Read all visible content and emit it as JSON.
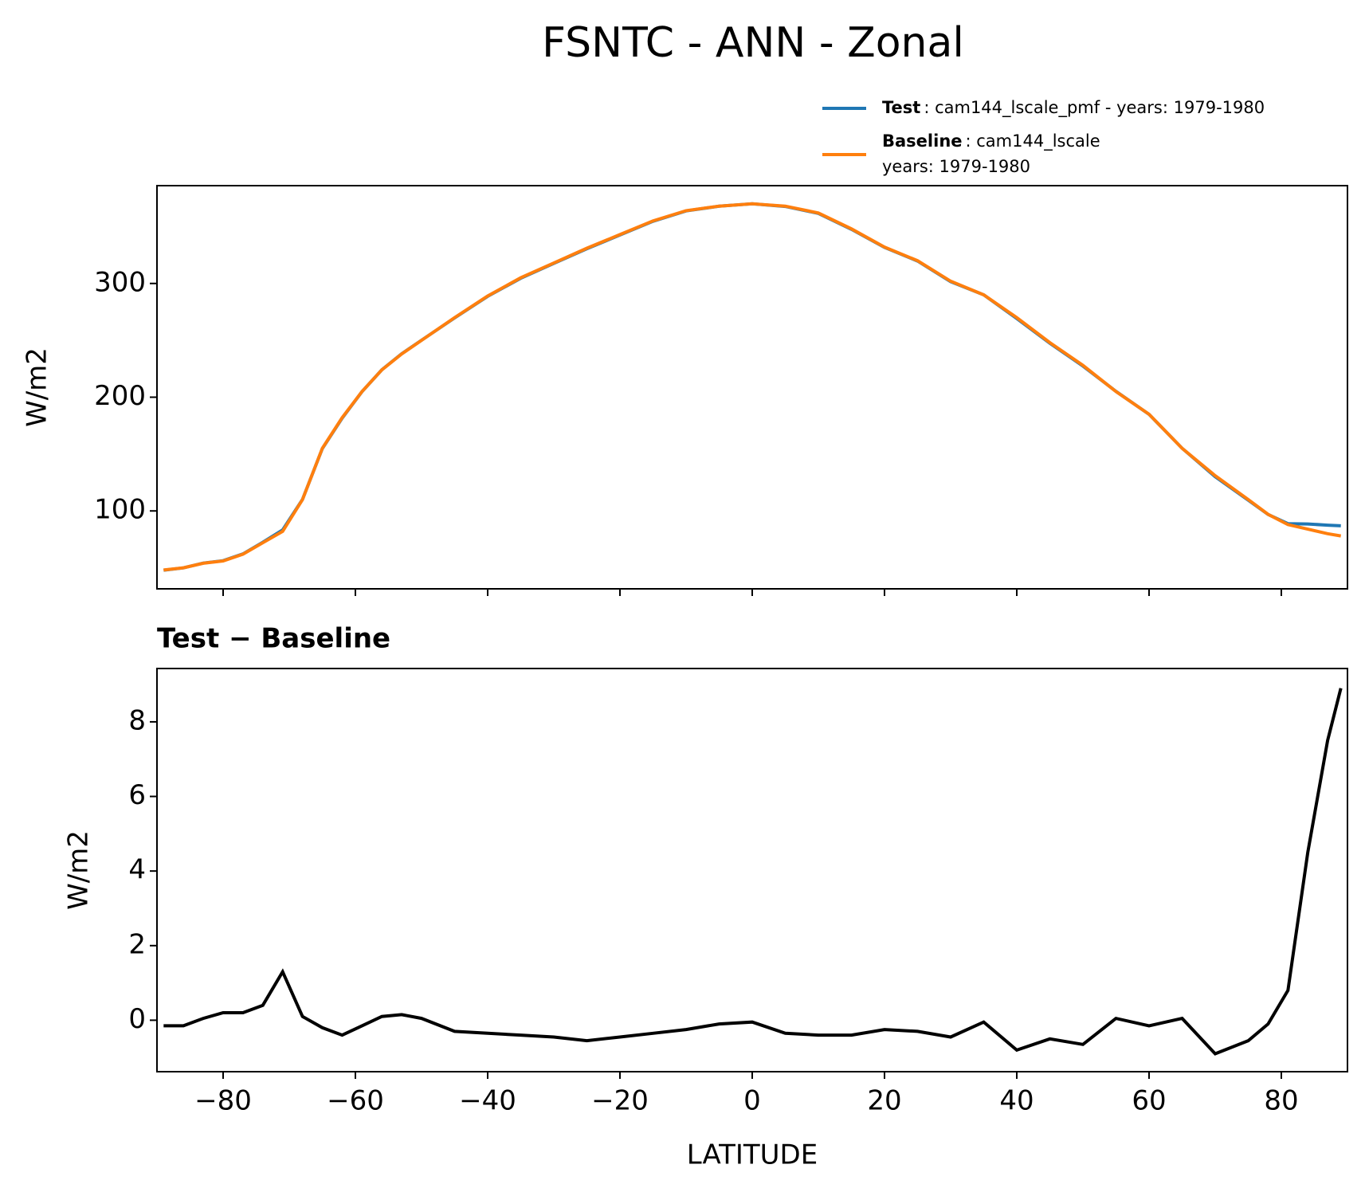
{
  "chart_data": [
    {
      "type": "line",
      "title": "FSNTC - ANN - Zonal",
      "ylabel": "W/m2",
      "x": [
        -89,
        -86,
        -83,
        -80,
        -77,
        -74,
        -71,
        -68,
        -65,
        -62,
        -59,
        -56,
        -53,
        -50,
        -45,
        -40,
        -35,
        -30,
        -25,
        -20,
        -15,
        -10,
        -5,
        0,
        5,
        10,
        15,
        20,
        25,
        30,
        35,
        40,
        45,
        50,
        55,
        60,
        65,
        70,
        75,
        78,
        81,
        84,
        87,
        89
      ],
      "series": [
        {
          "name": "Test",
          "label": [
            ": cam144_lscale_pmf - years: 1979-1980"
          ],
          "color": "#1f77b4",
          "values": [
            47.9,
            49.9,
            54.1,
            56.2,
            62.2,
            72.4,
            83.3,
            110.1,
            154.8,
            181.6,
            204.9,
            224.1,
            238.2,
            250.1,
            269.7,
            288.7,
            304.6,
            317.6,
            330.5,
            342.6,
            354.7,
            363.8,
            367.9,
            370.0,
            367.7,
            361.6,
            347.6,
            331.8,
            319.7,
            301.6,
            290.0,
            269.2,
            247.5,
            227.4,
            205.1,
            184.9,
            155.1,
            130.1,
            109.5,
            96.9,
            88.8,
            88.5,
            87.5,
            86.9
          ]
        },
        {
          "name": "Baseline",
          "label": [
            ": cam144_lscale",
            "years: 1979-1980"
          ],
          "color": "#ff7f0e",
          "values": [
            48,
            50,
            54,
            56,
            62,
            72,
            82,
            110,
            155,
            182,
            205,
            224,
            238,
            250,
            270,
            289,
            305,
            318,
            331,
            343,
            355,
            364,
            368,
            370,
            368,
            362,
            348,
            332,
            320,
            302,
            290,
            270,
            248,
            228,
            205,
            185,
            155,
            131,
            110,
            97,
            88,
            84,
            80,
            78
          ]
        }
      ],
      "xlim": [
        -90,
        90
      ],
      "xticks": [
        -80,
        -60,
        -40,
        -20,
        0,
        20,
        40,
        60,
        80
      ],
      "ylim": [
        31.5,
        386
      ],
      "yticks": [
        100,
        200,
        300
      ]
    },
    {
      "type": "line",
      "title": "Test − Baseline",
      "xlabel": "LATITUDE",
      "ylabel": "W/m2",
      "x": [
        -89,
        -86,
        -83,
        -80,
        -77,
        -74,
        -71,
        -68,
        -65,
        -62,
        -59,
        -56,
        -53,
        -50,
        -45,
        -40,
        -35,
        -30,
        -25,
        -20,
        -15,
        -10,
        -5,
        0,
        5,
        10,
        15,
        20,
        25,
        30,
        35,
        40,
        45,
        50,
        55,
        60,
        65,
        70,
        75,
        78,
        81,
        84,
        87,
        89
      ],
      "series": [
        {
          "color": "#000000",
          "values": [
            -0.15,
            -0.15,
            0.05,
            0.2,
            0.2,
            0.4,
            1.3,
            0.1,
            -0.2,
            -0.4,
            -0.15,
            0.1,
            0.15,
            0.05,
            -0.3,
            -0.35,
            -0.4,
            -0.45,
            -0.55,
            -0.45,
            -0.35,
            -0.25,
            -0.1,
            -0.05,
            -0.35,
            -0.4,
            -0.4,
            -0.25,
            -0.3,
            -0.45,
            -0.05,
            -0.8,
            -0.5,
            -0.65,
            0.05,
            -0.15,
            0.05,
            -0.9,
            -0.55,
            -0.1,
            0.8,
            4.5,
            7.5,
            8.9
          ]
        }
      ],
      "xlim": [
        -90,
        90
      ],
      "xticks": [
        {
          "value": -80,
          "label": "−80"
        },
        {
          "value": -60,
          "label": "−60"
        },
        {
          "value": -40,
          "label": "−40"
        },
        {
          "value": -20,
          "label": "−20"
        },
        0,
        20,
        40,
        60,
        80
      ],
      "ylim": [
        -1.38,
        9.43
      ],
      "yticks": [
        0,
        2,
        4,
        6,
        8
      ]
    }
  ]
}
